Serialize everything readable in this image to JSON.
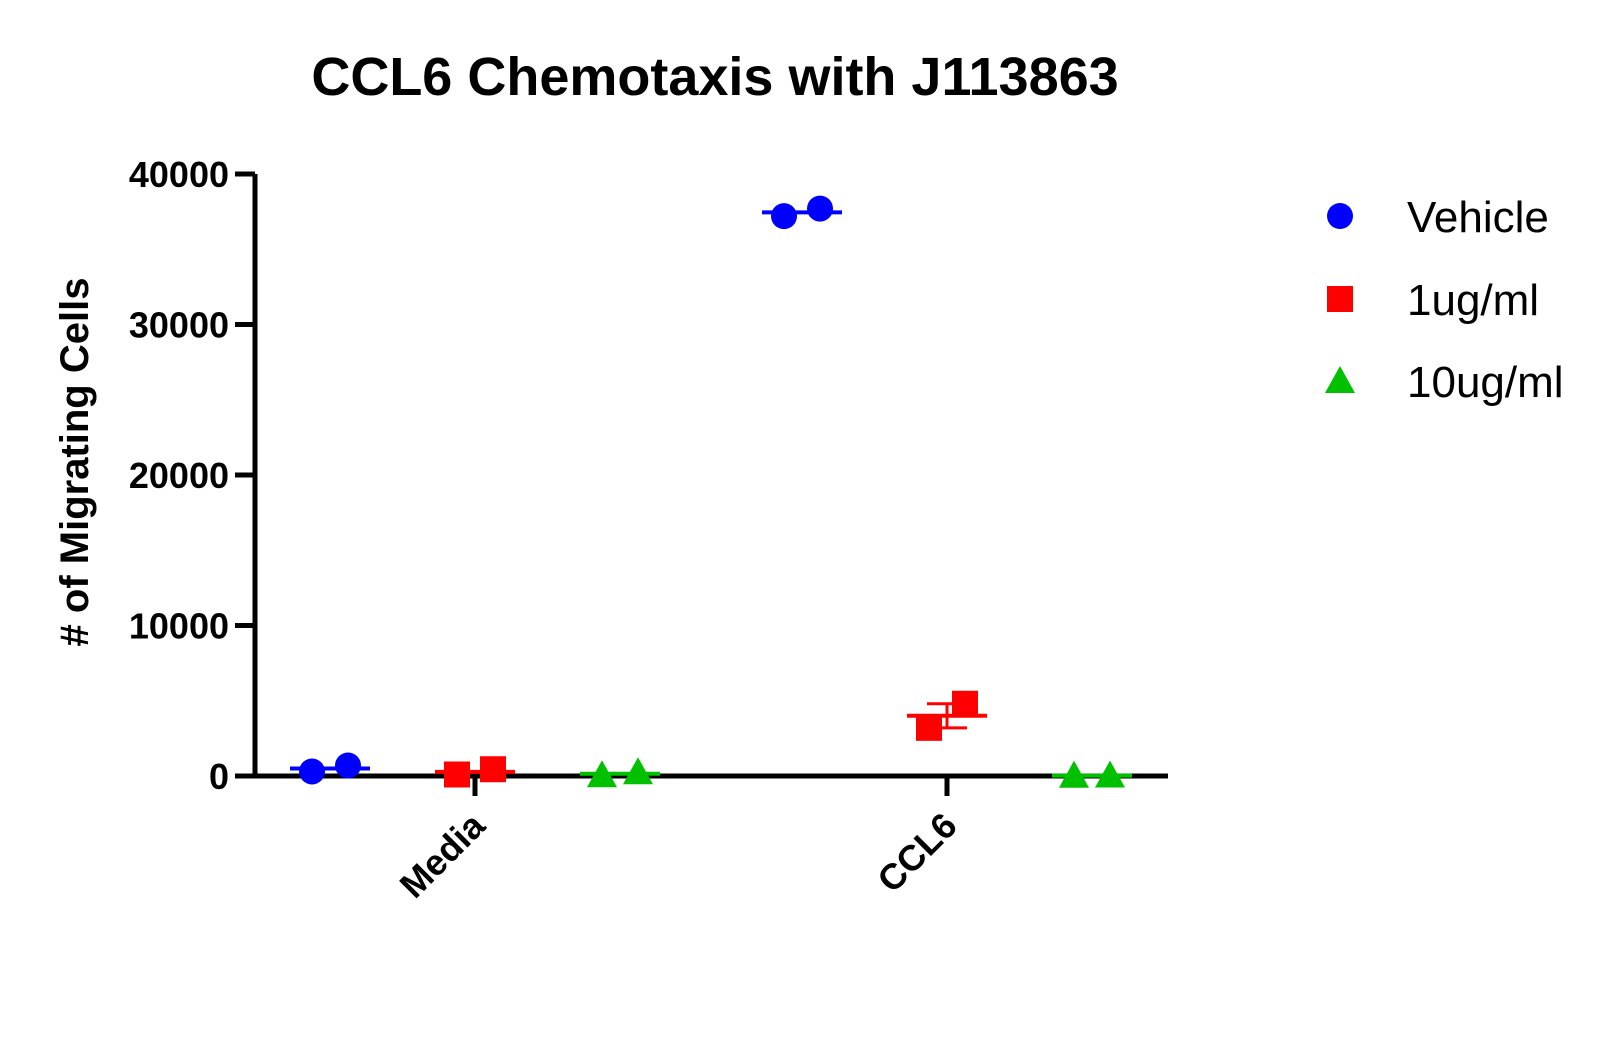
{
  "chart_data": {
    "type": "scatter",
    "title": "CCL6 Chemotaxis with J113863",
    "ylabel": "# of Migrating Cells",
    "xlabel": "",
    "ylim": [
      0,
      40000
    ],
    "yticks": [
      0,
      10000,
      20000,
      30000,
      40000
    ],
    "yticklabels": [
      "0",
      "10000",
      "20000",
      "30000",
      "40000"
    ],
    "categories": [
      "Media",
      "CCL6"
    ],
    "grid": false,
    "legend_position": "right",
    "series": [
      {
        "name": "Vehicle",
        "color": "#0000ff",
        "marker": "circle",
        "points": [
          [
            300,
            700
          ],
          [
            37200,
            37700
          ]
        ],
        "mean": [
          500,
          37450
        ]
      },
      {
        "name": "1ug/ml",
        "color": "#ff0000",
        "marker": "square",
        "points": [
          [
            100,
            450
          ],
          [
            3200,
            4800
          ]
        ],
        "mean": [
          275,
          4000
        ]
      },
      {
        "name": "10ug/ml",
        "color": "#00c000",
        "marker": "triangle",
        "points": [
          [
            50,
            250
          ],
          [
            20,
            30
          ]
        ],
        "mean": [
          150,
          25
        ]
      }
    ]
  }
}
